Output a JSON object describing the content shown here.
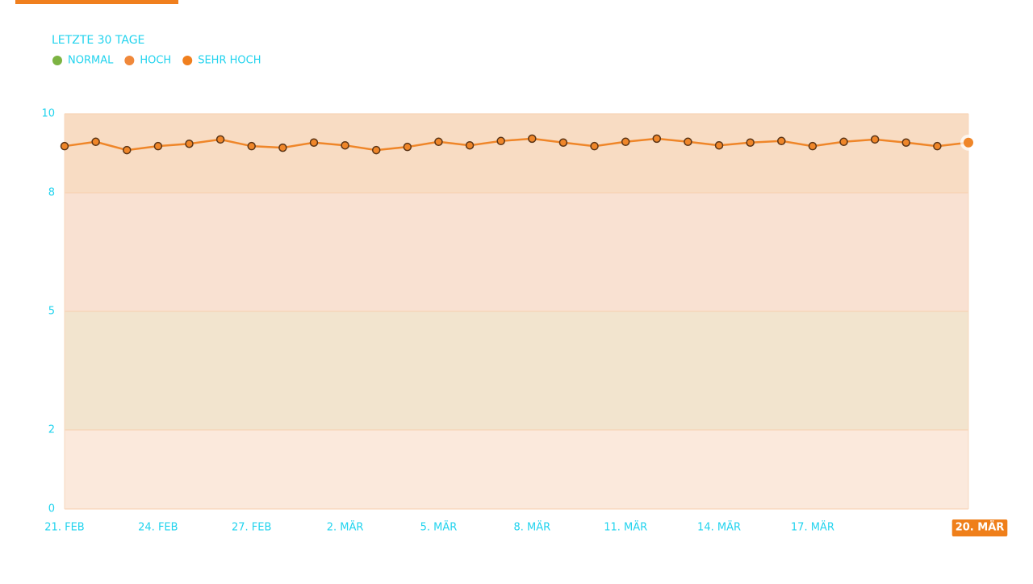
{
  "chart_data": {
    "type": "line",
    "title": "LETZTE 30 TAGE",
    "legend": [
      {
        "name": "NORMAL",
        "color": "#7cb342"
      },
      {
        "name": "HOCH",
        "color": "#f0883a"
      },
      {
        "name": "SEHR HOCH",
        "color": "#f07f1e"
      }
    ],
    "categories": [
      "21. FEB",
      null,
      null,
      "24. FEB",
      null,
      null,
      "27. FEB",
      null,
      null,
      "2. MÄR",
      null,
      null,
      "5. MÄR",
      null,
      null,
      "8. MÄR",
      null,
      null,
      "11. MÄR",
      null,
      null,
      "14. MÄR",
      null,
      null,
      "17. MÄR",
      null,
      null,
      null,
      null,
      "20. MÄR"
    ],
    "series": [
      {
        "name": "SEHR HOCH",
        "color": "#ef8629",
        "values": [
          9.18,
          9.29,
          9.08,
          9.18,
          9.24,
          9.35,
          9.18,
          9.14,
          9.27,
          9.2,
          9.08,
          9.16,
          9.29,
          9.2,
          9.31,
          9.37,
          9.27,
          9.18,
          9.29,
          9.37,
          9.29,
          9.2,
          9.27,
          9.31,
          9.18,
          9.29,
          9.35,
          9.27,
          9.18,
          9.27
        ]
      }
    ],
    "ylim": [
      0,
      10
    ],
    "yticks": [
      0,
      2,
      5,
      8,
      10
    ],
    "band_colors": [
      "#fbe9dc",
      "#f2e4ce",
      "#f9e1d2",
      "#f8dcc3"
    ]
  }
}
